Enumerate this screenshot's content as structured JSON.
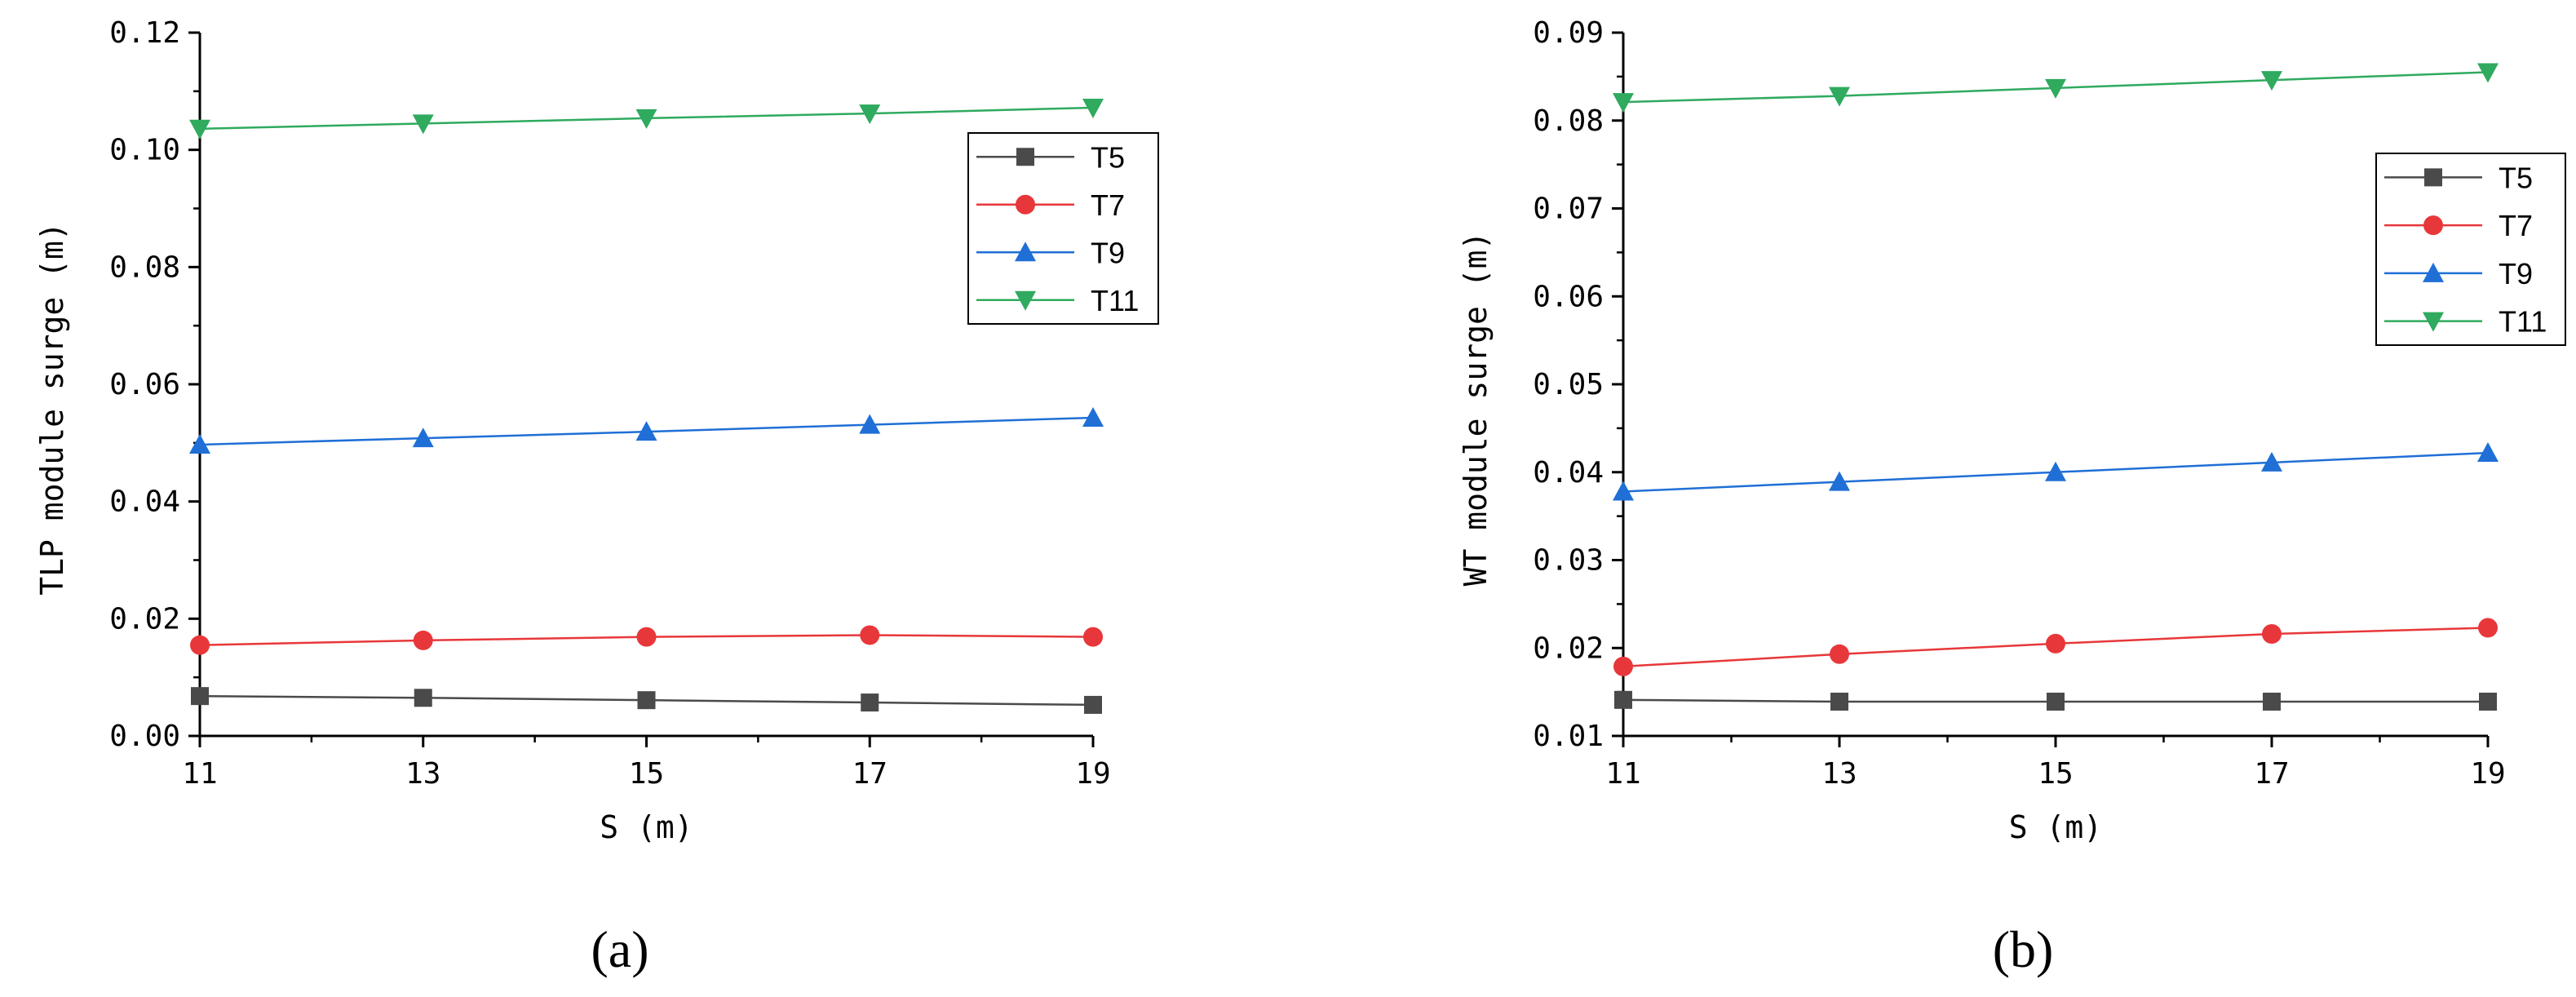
{
  "chart_data": [
    {
      "type": "line",
      "panel_label": "(a)",
      "xlabel": "S (m)",
      "ylabel": "TLP module surge (m)",
      "x": [
        11,
        13,
        15,
        17,
        19
      ],
      "xlim": [
        11,
        19
      ],
      "ylim": [
        0.0,
        0.12
      ],
      "xticks": [
        "11",
        "13",
        "15",
        "17",
        "19"
      ],
      "yticks": [
        "0.00",
        "0.02",
        "0.04",
        "0.06",
        "0.08",
        "0.10",
        "0.12"
      ],
      "grid": false,
      "legend_position": "top-right",
      "series": [
        {
          "name": "T5",
          "color": "#4a4a4a",
          "marker": "square",
          "values": [
            0.0068,
            0.0065,
            0.0061,
            0.0057,
            0.0053
          ]
        },
        {
          "name": "T7",
          "color": "#e8373a",
          "marker": "circle",
          "values": [
            0.0155,
            0.0163,
            0.0169,
            0.0172,
            0.0169
          ]
        },
        {
          "name": "T9",
          "color": "#1f6fd6",
          "marker": "triangle-up",
          "values": [
            0.0497,
            0.0508,
            0.0519,
            0.0531,
            0.0543
          ]
        },
        {
          "name": "T11",
          "color": "#2faa5e",
          "marker": "triangle-down",
          "values": [
            0.1036,
            0.1045,
            0.1054,
            0.1062,
            0.1072
          ]
        }
      ]
    },
    {
      "type": "line",
      "panel_label": "(b)",
      "xlabel": "S (m)",
      "ylabel": "WT module surge (m)",
      "x": [
        11,
        13,
        15,
        17,
        19
      ],
      "xlim": [
        11,
        19
      ],
      "ylim": [
        0.01,
        0.09
      ],
      "xticks": [
        "11",
        "13",
        "15",
        "17",
        "19"
      ],
      "yticks": [
        "0.01",
        "0.02",
        "0.03",
        "0.04",
        "0.05",
        "0.06",
        "0.07",
        "0.08",
        "0.09"
      ],
      "grid": false,
      "legend_position": "right",
      "series": [
        {
          "name": "T5",
          "color": "#4a4a4a",
          "marker": "square",
          "values": [
            0.0141,
            0.0139,
            0.0139,
            0.0139,
            0.0139
          ]
        },
        {
          "name": "T7",
          "color": "#e8373a",
          "marker": "circle",
          "values": [
            0.0179,
            0.0193,
            0.0205,
            0.0216,
            0.0223
          ]
        },
        {
          "name": "T9",
          "color": "#1f6fd6",
          "marker": "triangle-up",
          "values": [
            0.0378,
            0.0389,
            0.04,
            0.0411,
            0.0422
          ]
        },
        {
          "name": "T11",
          "color": "#2faa5e",
          "marker": "triangle-down",
          "values": [
            0.0821,
            0.0828,
            0.0837,
            0.0846,
            0.0855
          ]
        }
      ]
    }
  ]
}
